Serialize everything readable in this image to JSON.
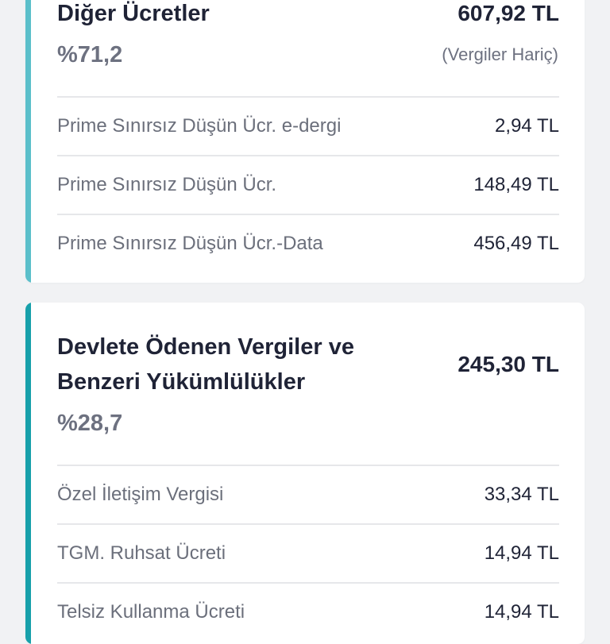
{
  "cards": [
    {
      "title": "Diğer Ücretler",
      "amount": "607,92 TL",
      "percent": "%71,2",
      "note": "(Vergiler Hariç)",
      "accent": "#5bbfca",
      "rows": [
        {
          "label": "Prime Sınırsız Düşün Ücr. e-dergi",
          "value": "2,94 TL"
        },
        {
          "label": "Prime Sınırsız Düşün Ücr.",
          "value": "148,49 TL"
        },
        {
          "label": "Prime Sınırsız Düşün Ücr.-Data",
          "value": "456,49 TL"
        }
      ]
    },
    {
      "title_line1": "Devlete Ödenen Vergiler ve",
      "title_line2": "Benzeri Yükümlülükler",
      "amount": "245,30 TL",
      "percent": "%28,7",
      "accent": "#17a0aa",
      "rows": [
        {
          "label": "Özel İletişim Vergisi",
          "value": "33,34 TL"
        },
        {
          "label": "TGM. Ruhsat Ücreti",
          "value": "14,94 TL"
        },
        {
          "label": "Telsiz Kullanma Ücreti",
          "value": "14,94 TL"
        }
      ]
    }
  ]
}
